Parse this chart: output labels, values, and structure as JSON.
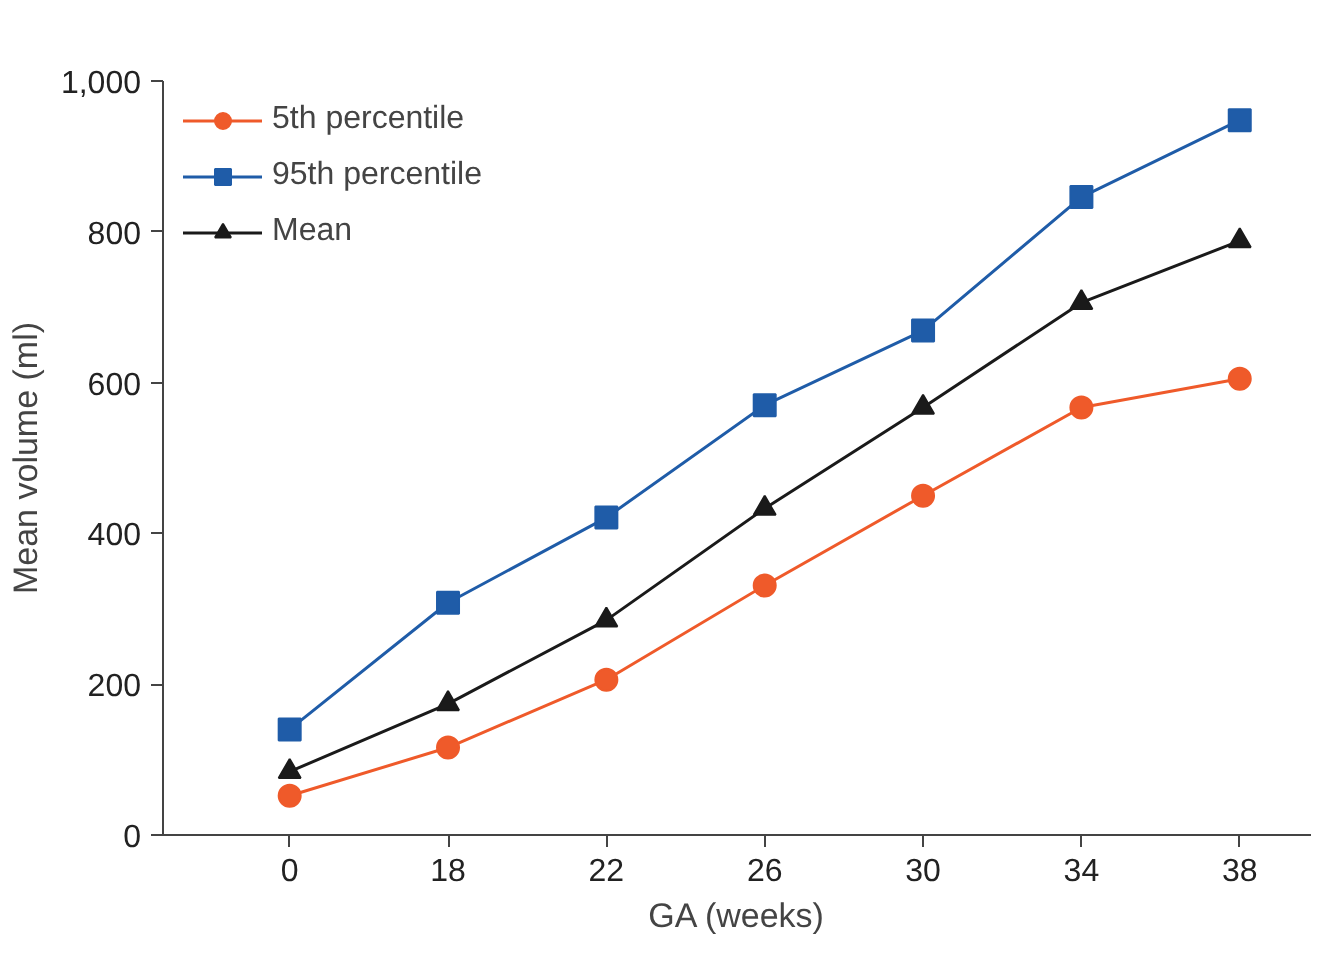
{
  "chart_data": {
    "type": "line",
    "xlabel": "GA (weeks)",
    "ylabel": "Mean volume (ml)",
    "categories": [
      "0",
      "18",
      "22",
      "26",
      "30",
      "34",
      "38"
    ],
    "ylim": [
      0,
      1000
    ],
    "yticks": [
      0,
      200,
      400,
      600,
      800,
      {
        "value": 1000,
        "label": "1,000"
      }
    ],
    "grid": false,
    "legend": "top left",
    "line_style": "solid",
    "series": [
      {
        "name": "5th percentile",
        "color": "#ef5a2a",
        "marker": "circle",
        "values": [
          52,
          116,
          206,
          331,
          450,
          567,
          605
        ]
      },
      {
        "name": "95th percentile",
        "color": "#1f5ca8",
        "marker": "square",
        "values": [
          140,
          308,
          421,
          570,
          669,
          846,
          948
        ]
      },
      {
        "name": "Mean",
        "color": "#1a1a1a",
        "marker": "triangle",
        "values": [
          84,
          174,
          285,
          433,
          567,
          706,
          788
        ]
      }
    ]
  }
}
